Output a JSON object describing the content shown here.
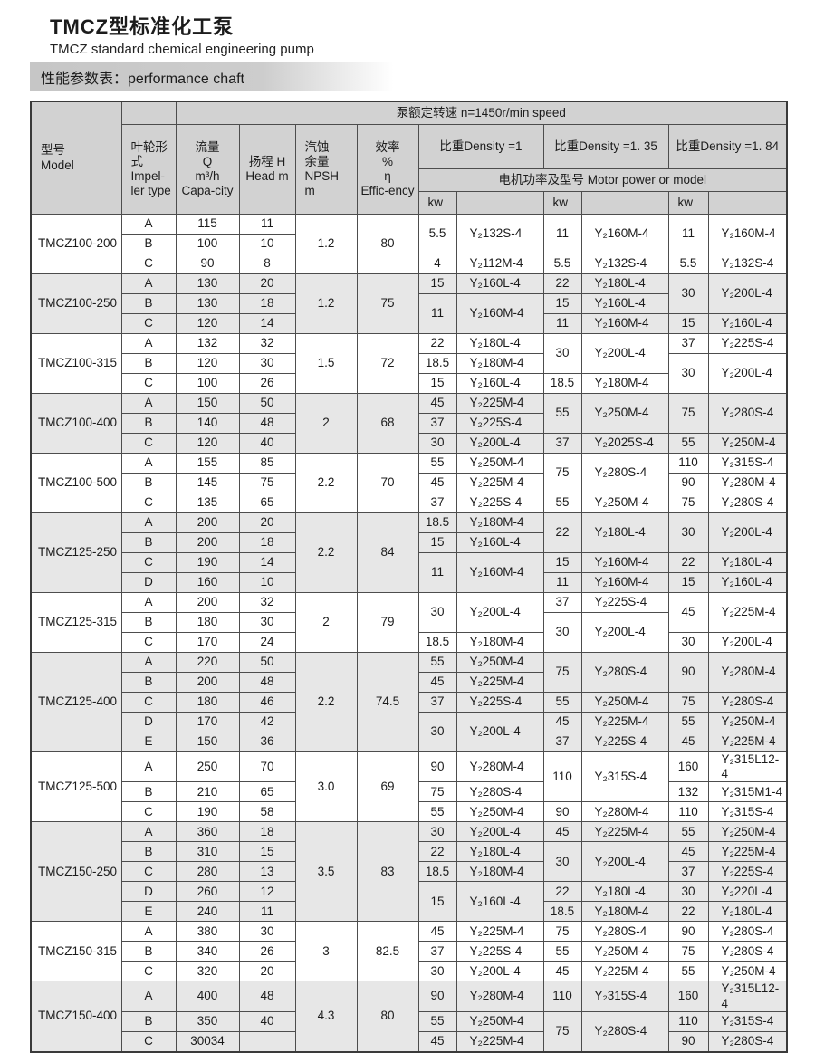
{
  "page": {
    "title_cn": "TMCZ型标准化工泵",
    "title_en": "TMCZ standard chemical engineering pump",
    "section_label": "性能参数表：performance chaft"
  },
  "table": {
    "speed_header": "泵额定转速  n=1450r/min speed",
    "headers": {
      "model": "型号\nModel",
      "impeller": "叶轮形\n式\nImpel-\nler type",
      "flow": "流量\nQ\nm³/h\nCapa-city",
      "head": "扬程  H\nHead m",
      "npsh": "汽蚀\n余量\nNPSH\nm",
      "efficiency": "效率\n%\nη\nEffic-ency",
      "motor": "电机功率及型号  Motor power or model",
      "kw": "kw"
    },
    "density_headers": [
      "比重Density =1",
      "比重Density =1. 35",
      "比重Density =1. 84"
    ],
    "groups": [
      {
        "model": "TMCZ100-200",
        "npsh": "1.2",
        "eff": "80",
        "rows": [
          {
            "imp": "A",
            "q": "115",
            "h": "11"
          },
          {
            "imp": "B",
            "q": "100",
            "h": "10"
          },
          {
            "imp": "C",
            "q": "90",
            "h": "8"
          }
        ],
        "d1": [
          {
            "span": 2,
            "kw": "5.5",
            "m": "Y₂132S-4"
          },
          {
            "span": 1,
            "kw": "4",
            "m": "Y₂112M-4"
          }
        ],
        "d135": [
          {
            "span": 2,
            "kw": "11",
            "m": "Y₂160M-4"
          },
          {
            "span": 1,
            "kw": "5.5",
            "m": "Y₂132S-4"
          }
        ],
        "d184": [
          {
            "span": 2,
            "kw": "11",
            "m": "Y₂160M-4"
          },
          {
            "span": 1,
            "kw": "5.5",
            "m": "Y₂132S-4"
          }
        ]
      },
      {
        "model": "TMCZ100-250",
        "npsh": "1.2",
        "eff": "75",
        "rows": [
          {
            "imp": "A",
            "q": "130",
            "h": "20"
          },
          {
            "imp": "B",
            "q": "130",
            "h": "18"
          },
          {
            "imp": "C",
            "q": "120",
            "h": "14"
          }
        ],
        "d1": [
          {
            "span": 1,
            "kw": "15",
            "m": "Y₂160L-4"
          },
          {
            "span": 2,
            "kw": "11",
            "m": "Y₂160M-4"
          }
        ],
        "d135": [
          {
            "span": 1,
            "kw": "22",
            "m": "Y₂180L-4"
          },
          {
            "span": 1,
            "kw": "15",
            "m": "Y₂160L-4"
          },
          {
            "span": 1,
            "kw": "11",
            "m": "Y₂160M-4"
          }
        ],
        "d184": [
          {
            "span": 2,
            "kw": "30",
            "m": "Y₂200L-4"
          },
          {
            "span": 1,
            "kw": "15",
            "m": "Y₂160L-4"
          }
        ]
      },
      {
        "model": "TMCZ100-315",
        "npsh": "1.5",
        "eff": "72",
        "rows": [
          {
            "imp": "A",
            "q": "132",
            "h": "32"
          },
          {
            "imp": "B",
            "q": "120",
            "h": "30"
          },
          {
            "imp": "C",
            "q": "100",
            "h": "26"
          }
        ],
        "d1": [
          {
            "span": 1,
            "kw": "22",
            "m": "Y₂180L-4"
          },
          {
            "span": 1,
            "kw": "18.5",
            "m": "Y₂180M-4"
          },
          {
            "span": 1,
            "kw": "15",
            "m": "Y₂160L-4"
          }
        ],
        "d135": [
          {
            "span": 2,
            "kw": "30",
            "m": "Y₂200L-4"
          },
          {
            "span": 1,
            "kw": "18.5",
            "m": "Y₂180M-4"
          }
        ],
        "d184": [
          {
            "span": 1,
            "kw": "37",
            "m": "Y₂225S-4"
          },
          {
            "span": 2,
            "kw": "30",
            "m": "Y₂200L-4"
          }
        ]
      },
      {
        "model": "TMCZ100-400",
        "npsh": "2",
        "eff": "68",
        "rows": [
          {
            "imp": "A",
            "q": "150",
            "h": "50"
          },
          {
            "imp": "B",
            "q": "140",
            "h": "48"
          },
          {
            "imp": "C",
            "q": "120",
            "h": "40"
          }
        ],
        "d1": [
          {
            "span": 1,
            "kw": "45",
            "m": "Y₂225M-4"
          },
          {
            "span": 1,
            "kw": "37",
            "m": "Y₂225S-4"
          },
          {
            "span": 1,
            "kw": "30",
            "m": "Y₂200L-4"
          }
        ],
        "d135": [
          {
            "span": 2,
            "kw": "55",
            "m": "Y₂250M-4"
          },
          {
            "span": 1,
            "kw": "37",
            "m": "Y₂2025S-4"
          }
        ],
        "d184": [
          {
            "span": 2,
            "kw": "75",
            "m": "Y₂280S-4"
          },
          {
            "span": 1,
            "kw": "55",
            "m": "Y₂250M-4"
          }
        ]
      },
      {
        "model": "TMCZ100-500",
        "npsh": "2.2",
        "eff": "70",
        "rows": [
          {
            "imp": "A",
            "q": "155",
            "h": "85"
          },
          {
            "imp": "B",
            "q": "145",
            "h": "75"
          },
          {
            "imp": "C",
            "q": "135",
            "h": "65"
          }
        ],
        "d1": [
          {
            "span": 1,
            "kw": "55",
            "m": "Y₂250M-4"
          },
          {
            "span": 1,
            "kw": "45",
            "m": "Y₂225M-4"
          },
          {
            "span": 1,
            "kw": "37",
            "m": "Y₂225S-4"
          }
        ],
        "d135": [
          {
            "span": 2,
            "kw": "75",
            "m": "Y₂280S-4"
          },
          {
            "span": 1,
            "kw": "55",
            "m": "Y₂250M-4"
          }
        ],
        "d184": [
          {
            "span": 1,
            "kw": "110",
            "m": "Y₂315S-4"
          },
          {
            "span": 1,
            "kw": "90",
            "m": "Y₂280M-4"
          },
          {
            "span": 1,
            "kw": "75",
            "m": "Y₂280S-4"
          }
        ]
      },
      {
        "model": "TMCZ125-250",
        "npsh": "2.2",
        "eff": "84",
        "rows": [
          {
            "imp": "A",
            "q": "200",
            "h": "20"
          },
          {
            "imp": "B",
            "q": "200",
            "h": "18"
          },
          {
            "imp": "C",
            "q": "190",
            "h": "14"
          },
          {
            "imp": "D",
            "q": "160",
            "h": "10"
          }
        ],
        "d1": [
          {
            "span": 1,
            "kw": "18.5",
            "m": "Y₂180M-4"
          },
          {
            "span": 1,
            "kw": "15",
            "m": "Y₂160L-4"
          },
          {
            "span": 2,
            "kw": "11",
            "m": "Y₂160M-4"
          }
        ],
        "d135": [
          {
            "span": 2,
            "kw": "22",
            "m": "Y₂180L-4"
          },
          {
            "span": 1,
            "kw": "15",
            "m": "Y₂160M-4"
          },
          {
            "span": 1,
            "kw": "11",
            "m": "Y₂160M-4"
          }
        ],
        "d184": [
          {
            "span": 2,
            "kw": "30",
            "m": "Y₂200L-4"
          },
          {
            "span": 1,
            "kw": "22",
            "m": "Y₂180L-4"
          },
          {
            "span": 1,
            "kw": "15",
            "m": "Y₂160L-4"
          }
        ]
      },
      {
        "model": "TMCZ125-315",
        "npsh": "2",
        "eff": "79",
        "rows": [
          {
            "imp": "A",
            "q": "200",
            "h": "32"
          },
          {
            "imp": "B",
            "q": "180",
            "h": "30"
          },
          {
            "imp": "C",
            "q": "170",
            "h": "24"
          }
        ],
        "d1": [
          {
            "span": 2,
            "kw": "30",
            "m": "Y₂200L-4"
          },
          {
            "span": 1,
            "kw": "18.5",
            "m": "Y₂180M-4"
          }
        ],
        "d135": [
          {
            "span": 1,
            "kw": "37",
            "m": "Y₂225S-4"
          },
          {
            "span": 2,
            "kw": "30",
            "m": "Y₂200L-4"
          }
        ],
        "d184": [
          {
            "span": 2,
            "kw": "45",
            "m": "Y₂225M-4"
          },
          {
            "span": 1,
            "kw": "30",
            "m": "Y₂200L-4"
          }
        ]
      },
      {
        "model": "TMCZ125-400",
        "npsh": "2.2",
        "eff": "74.5",
        "rows": [
          {
            "imp": "A",
            "q": "220",
            "h": "50"
          },
          {
            "imp": "B",
            "q": "200",
            "h": "48"
          },
          {
            "imp": "C",
            "q": "180",
            "h": "46"
          },
          {
            "imp": "D",
            "q": "170",
            "h": "42"
          },
          {
            "imp": "E",
            "q": "150",
            "h": "36"
          }
        ],
        "d1": [
          {
            "span": 1,
            "kw": "55",
            "m": "Y₂250M-4"
          },
          {
            "span": 1,
            "kw": "45",
            "m": "Y₂225M-4"
          },
          {
            "span": 1,
            "kw": "37",
            "m": "Y₂225S-4"
          },
          {
            "span": 2,
            "kw": "30",
            "m": "Y₂200L-4"
          }
        ],
        "d135": [
          {
            "span": 2,
            "kw": "75",
            "m": "Y₂280S-4"
          },
          {
            "span": 1,
            "kw": "55",
            "m": "Y₂250M-4"
          },
          {
            "span": 1,
            "kw": "45",
            "m": "Y₂225M-4"
          },
          {
            "span": 1,
            "kw": "37",
            "m": "Y₂225S-4"
          }
        ],
        "d184": [
          {
            "span": 2,
            "kw": "90",
            "m": "Y₂280M-4"
          },
          {
            "span": 1,
            "kw": "75",
            "m": "Y₂280S-4"
          },
          {
            "span": 1,
            "kw": "55",
            "m": "Y₂250M-4"
          },
          {
            "span": 1,
            "kw": "45",
            "m": "Y₂225M-4"
          }
        ]
      },
      {
        "model": "TMCZ125-500",
        "npsh": "3.0",
        "eff": "69",
        "rows": [
          {
            "imp": "A",
            "q": "250",
            "h": "70"
          },
          {
            "imp": "B",
            "q": "210",
            "h": "65"
          },
          {
            "imp": "C",
            "q": "190",
            "h": "58"
          }
        ],
        "d1": [
          {
            "span": 1,
            "kw": "90",
            "m": "Y₂280M-4"
          },
          {
            "span": 1,
            "kw": "75",
            "m": "Y₂280S-4"
          },
          {
            "span": 1,
            "kw": "55",
            "m": "Y₂250M-4"
          }
        ],
        "d135": [
          {
            "span": 2,
            "kw": "110",
            "m": "Y₂315S-4"
          },
          {
            "span": 1,
            "kw": "90",
            "m": "Y₂280M-4"
          }
        ],
        "d184": [
          {
            "span": 1,
            "kw": "160",
            "m": "Y₂315L12-4"
          },
          {
            "span": 1,
            "kw": "132",
            "m": "Y₂315M1-4"
          },
          {
            "span": 1,
            "kw": "110",
            "m": "Y₂315S-4"
          }
        ]
      },
      {
        "model": "TMCZ150-250",
        "npsh": "3.5",
        "eff": "83",
        "rows": [
          {
            "imp": "A",
            "q": "360",
            "h": "18"
          },
          {
            "imp": "B",
            "q": "310",
            "h": "15"
          },
          {
            "imp": "C",
            "q": "280",
            "h": "13"
          },
          {
            "imp": "D",
            "q": "260",
            "h": "12"
          },
          {
            "imp": "E",
            "q": "240",
            "h": "11"
          }
        ],
        "d1": [
          {
            "span": 1,
            "kw": "30",
            "m": "Y₂200L-4"
          },
          {
            "span": 1,
            "kw": "22",
            "m": "Y₂180L-4"
          },
          {
            "span": 1,
            "kw": "18.5",
            "m": "Y₂180M-4"
          },
          {
            "span": 2,
            "kw": "15",
            "m": "Y₂160L-4"
          }
        ],
        "d135": [
          {
            "span": 1,
            "kw": "45",
            "m": "Y₂225M-4"
          },
          {
            "span": 2,
            "kw": "30",
            "m": "Y₂200L-4"
          },
          {
            "span": 1,
            "kw": "22",
            "m": "Y₂180L-4"
          },
          {
            "span": 1,
            "kw": "18.5",
            "m": "Y₂180M-4"
          }
        ],
        "d184": [
          {
            "span": 1,
            "kw": "55",
            "m": "Y₂250M-4"
          },
          {
            "span": 1,
            "kw": "45",
            "m": "Y₂225M-4"
          },
          {
            "span": 1,
            "kw": "37",
            "m": "Y₂225S-4"
          },
          {
            "span": 1,
            "kw": "30",
            "m": "Y₂220L-4"
          },
          {
            "span": 1,
            "kw": "22",
            "m": "Y₂180L-4"
          }
        ]
      },
      {
        "model": "TMCZ150-315",
        "npsh": "3",
        "eff": "82.5",
        "rows": [
          {
            "imp": "A",
            "q": "380",
            "h": "30"
          },
          {
            "imp": "B",
            "q": "340",
            "h": "26"
          },
          {
            "imp": "C",
            "q": "320",
            "h": "20"
          }
        ],
        "d1": [
          {
            "span": 1,
            "kw": "45",
            "m": "Y₂225M-4"
          },
          {
            "span": 1,
            "kw": "37",
            "m": "Y₂225S-4"
          },
          {
            "span": 1,
            "kw": "30",
            "m": "Y₂200L-4"
          }
        ],
        "d135": [
          {
            "span": 1,
            "kw": "75",
            "m": "Y₂280S-4"
          },
          {
            "span": 1,
            "kw": "55",
            "m": "Y₂250M-4"
          },
          {
            "span": 1,
            "kw": "45",
            "m": "Y₂225M-4"
          }
        ],
        "d184": [
          {
            "span": 1,
            "kw": "90",
            "m": "Y₂280S-4"
          },
          {
            "span": 1,
            "kw": "75",
            "m": "Y₂280S-4"
          },
          {
            "span": 1,
            "kw": "55",
            "m": "Y₂250M-4"
          }
        ]
      },
      {
        "model": "TMCZ150-400",
        "npsh": "4.3",
        "eff": "80",
        "rows": [
          {
            "imp": "A",
            "q": "400",
            "h": "48"
          },
          {
            "imp": "B",
            "q": "350",
            "h": "40"
          },
          {
            "imp": "C",
            "q": "30034",
            "h": ""
          }
        ],
        "d1": [
          {
            "span": 1,
            "kw": "90",
            "m": "Y₂280M-4"
          },
          {
            "span": 1,
            "kw": "55",
            "m": "Y₂250M-4"
          },
          {
            "span": 1,
            "kw": "45",
            "m": "Y₂225M-4"
          }
        ],
        "d135": [
          {
            "span": 1,
            "kw": "110",
            "m": "Y₂315S-4"
          },
          {
            "span": 2,
            "kw": "75",
            "m": "Y₂280S-4"
          }
        ],
        "d184": [
          {
            "span": 1,
            "kw": "160",
            "m": "Y₂315L12-4"
          },
          {
            "span": 1,
            "kw": "110",
            "m": "Y₂315S-4"
          },
          {
            "span": 1,
            "kw": "90",
            "m": "Y₂280S-4"
          }
        ]
      }
    ]
  }
}
